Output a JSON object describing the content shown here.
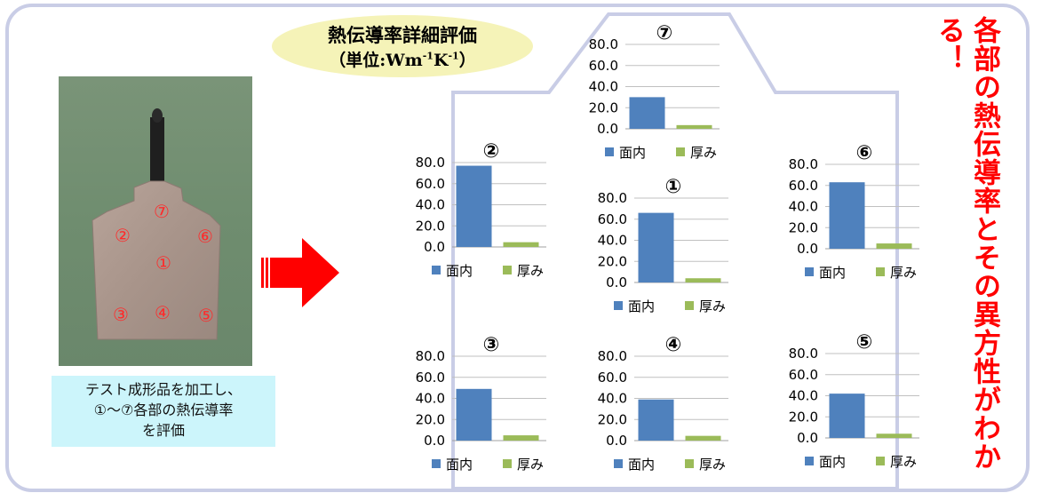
{
  "title": {
    "main": "熱伝導率詳細評価",
    "unit_open": "（単位:Wm",
    "unit_sup1": "-1",
    "unit_mid": "K",
    "unit_sup2": "-1",
    "unit_close": "）"
  },
  "photo": {
    "labels": [
      "⑦",
      "②",
      "⑥",
      "①",
      "③",
      "④",
      "⑤"
    ]
  },
  "caption": {
    "line1": "テスト成形品を加工し、",
    "line2": "①～⑦各部の熱伝導率",
    "line3": "を評価"
  },
  "side_text": "各部の熱伝導率とその異方性がわかる！",
  "colors": {
    "in_plane": "#4f81bd",
    "thickness": "#9bbb59",
    "grid": "#c0c0c0",
    "accent": "#ff0000"
  },
  "chart_data": [
    {
      "type": "bar",
      "id": "7",
      "label": "⑦",
      "categories": [
        "面内",
        "厚み"
      ],
      "values": [
        30.0,
        3.5
      ],
      "ylim": [
        0,
        80
      ],
      "yticks": [
        "0.0",
        "20.0",
        "40.0",
        "60.0",
        "80.0"
      ],
      "legend": [
        "面内",
        "厚み"
      ]
    },
    {
      "type": "bar",
      "id": "2",
      "label": "②",
      "categories": [
        "面内",
        "厚み"
      ],
      "values": [
        77.0,
        4.5
      ],
      "ylim": [
        0,
        80
      ],
      "yticks": [
        "0.0",
        "20.0",
        "40.0",
        "60.0",
        "80.0"
      ],
      "legend": [
        "面内",
        "厚み"
      ]
    },
    {
      "type": "bar",
      "id": "1",
      "label": "①",
      "categories": [
        "面内",
        "厚み"
      ],
      "values": [
        66.0,
        4.0
      ],
      "ylim": [
        0,
        80
      ],
      "yticks": [
        "0.0",
        "20.0",
        "40.0",
        "60.0",
        "80.0"
      ],
      "legend": [
        "面内",
        "厚み"
      ]
    },
    {
      "type": "bar",
      "id": "6",
      "label": "⑥",
      "categories": [
        "面内",
        "厚み"
      ],
      "values": [
        63.0,
        5.0
      ],
      "ylim": [
        0,
        80
      ],
      "yticks": [
        "0.0",
        "20.0",
        "40.0",
        "60.0",
        "80.0"
      ],
      "legend": [
        "面内",
        "厚み"
      ]
    },
    {
      "type": "bar",
      "id": "3",
      "label": "③",
      "categories": [
        "面内",
        "厚み"
      ],
      "values": [
        49.0,
        5.0
      ],
      "ylim": [
        0,
        80
      ],
      "yticks": [
        "0.0",
        "20.0",
        "40.0",
        "60.0",
        "80.0"
      ],
      "legend": [
        "面内",
        "厚み"
      ]
    },
    {
      "type": "bar",
      "id": "4",
      "label": "④",
      "categories": [
        "面内",
        "厚み"
      ],
      "values": [
        39.0,
        4.5
      ],
      "ylim": [
        0,
        80
      ],
      "yticks": [
        "0.0",
        "20.0",
        "40.0",
        "60.0",
        "80.0"
      ],
      "legend": [
        "面内",
        "厚み"
      ]
    },
    {
      "type": "bar",
      "id": "5",
      "label": "⑤",
      "categories": [
        "面内",
        "厚み"
      ],
      "values": [
        42.0,
        4.0
      ],
      "ylim": [
        0,
        80
      ],
      "yticks": [
        "0.0",
        "20.0",
        "40.0",
        "60.0",
        "80.0"
      ],
      "legend": [
        "面内",
        "厚み"
      ]
    }
  ]
}
